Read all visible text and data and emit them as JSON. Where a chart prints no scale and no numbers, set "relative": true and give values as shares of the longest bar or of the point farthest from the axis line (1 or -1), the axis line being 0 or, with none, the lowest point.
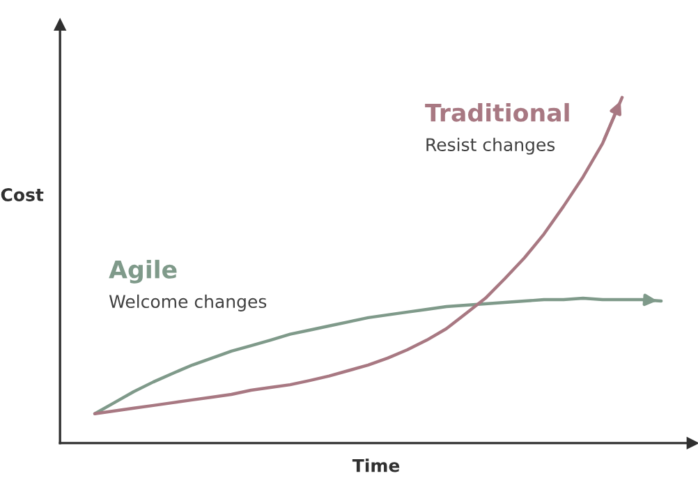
{
  "chart_data": {
    "type": "line",
    "relative": true,
    "xlabel": "Time",
    "ylabel": "Cost",
    "categories": [
      null,
      null,
      null,
      null,
      null,
      null,
      null,
      null,
      null,
      null,
      null,
      null,
      null,
      null,
      null,
      null,
      null,
      null,
      null,
      null,
      null,
      null,
      null,
      null,
      null,
      null,
      null,
      null,
      null,
      null
    ],
    "series": [
      {
        "name": "Agile",
        "color": "#7f9a8a",
        "values": [
          0.085,
          0.117,
          0.149,
          0.177,
          0.202,
          0.226,
          0.246,
          0.266,
          0.282,
          0.298,
          0.315,
          0.327,
          0.339,
          0.351,
          0.363,
          0.371,
          0.379,
          0.387,
          0.395,
          0.399,
          0.403,
          0.407,
          0.411,
          0.415,
          0.415,
          0.419,
          0.415,
          0.415,
          0.415,
          0.411
        ]
      },
      {
        "name": "Traditional",
        "color": "#a87882",
        "values": [
          0.085,
          0.093,
          0.101,
          0.109,
          0.117,
          0.125,
          0.133,
          0.141,
          0.153,
          0.161,
          0.169,
          0.181,
          0.194,
          0.21,
          0.226,
          0.246,
          0.27,
          0.298,
          0.331,
          0.375,
          0.419,
          0.476,
          0.536,
          0.605,
          0.685,
          0.77,
          0.867,
          1.0,
          null,
          null
        ]
      }
    ],
    "annotations": [
      "Welcome changes",
      "Resist changes"
    ]
  }
}
